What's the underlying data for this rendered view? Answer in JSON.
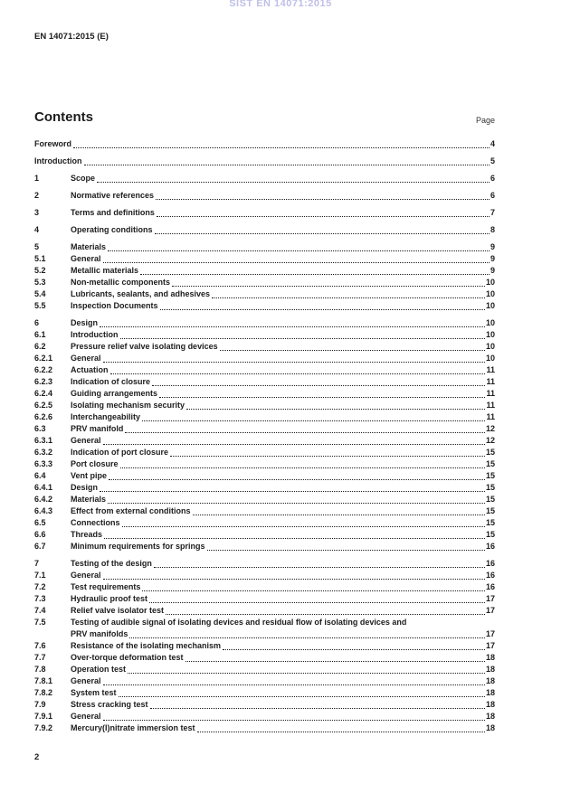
{
  "header": {
    "watermark": "SIST EN 14071:2015",
    "doc_ref": "EN 14071:2015 (E)"
  },
  "contents": {
    "title": "Contents",
    "page_label": "Page"
  },
  "toc": [
    {
      "num": "",
      "title": "Foreword",
      "page": "4",
      "level": "top",
      "unnumbered": true
    },
    {
      "num": "",
      "title": "Introduction",
      "page": "5",
      "level": "top",
      "unnumbered": true
    },
    {
      "num": "1",
      "title": "Scope",
      "page": "6",
      "level": "top"
    },
    {
      "num": "2",
      "title": "Normative references",
      "page": "6",
      "level": "top"
    },
    {
      "num": "3",
      "title": "Terms and definitions",
      "page": "7",
      "level": "top"
    },
    {
      "num": "4",
      "title": "Operating conditions",
      "page": "8",
      "level": "top"
    },
    {
      "num": "5",
      "title": "Materials",
      "page": "9",
      "level": "top"
    },
    {
      "num": "5.1",
      "title": "General",
      "page": "9",
      "level": "sub"
    },
    {
      "num": "5.2",
      "title": "Metallic materials",
      "page": "9",
      "level": "sub"
    },
    {
      "num": "5.3",
      "title": "Non-metallic components",
      "page": "10",
      "level": "sub"
    },
    {
      "num": "5.4",
      "title": "Lubricants, sealants, and adhesives",
      "page": "10",
      "level": "sub"
    },
    {
      "num": "5.5",
      "title": "Inspection Documents",
      "page": "10",
      "level": "sub"
    },
    {
      "num": "6",
      "title": "Design",
      "page": "10",
      "level": "top"
    },
    {
      "num": "6.1",
      "title": "Introduction",
      "page": "10",
      "level": "sub"
    },
    {
      "num": "6.2",
      "title": "Pressure relief valve isolating devices",
      "page": "10",
      "level": "sub"
    },
    {
      "num": "6.2.1",
      "title": "General",
      "page": "10",
      "level": "sub"
    },
    {
      "num": "6.2.2",
      "title": "Actuation",
      "page": "11",
      "level": "sub"
    },
    {
      "num": "6.2.3",
      "title": "Indication of closure",
      "page": "11",
      "level": "sub"
    },
    {
      "num": "6.2.4",
      "title": "Guiding arrangements",
      "page": "11",
      "level": "sub"
    },
    {
      "num": "6.2.5",
      "title": "Isolating mechanism security",
      "page": "11",
      "level": "sub"
    },
    {
      "num": "6.2.6",
      "title": "Interchangeability",
      "page": "11",
      "level": "sub"
    },
    {
      "num": "6.3",
      "title": "PRV manifold",
      "page": "12",
      "level": "sub"
    },
    {
      "num": "6.3.1",
      "title": "General",
      "page": "12",
      "level": "sub"
    },
    {
      "num": "6.3.2",
      "title": "Indication of port closure",
      "page": "15",
      "level": "sub"
    },
    {
      "num": "6.3.3",
      "title": "Port closure",
      "page": "15",
      "level": "sub"
    },
    {
      "num": "6.4",
      "title": "Vent pipe",
      "page": "15",
      "level": "sub"
    },
    {
      "num": "6.4.1",
      "title": "Design",
      "page": "15",
      "level": "sub"
    },
    {
      "num": "6.4.2",
      "title": "Materials",
      "page": "15",
      "level": "sub"
    },
    {
      "num": "6.4.3",
      "title": "Effect from external conditions",
      "page": "15",
      "level": "sub"
    },
    {
      "num": "6.5",
      "title": "Connections",
      "page": "15",
      "level": "sub"
    },
    {
      "num": "6.6",
      "title": "Threads",
      "page": "15",
      "level": "sub"
    },
    {
      "num": "6.7",
      "title": "Minimum requirements for springs",
      "page": "16",
      "level": "sub"
    },
    {
      "num": "7",
      "title": "Testing of the design",
      "page": "16",
      "level": "top"
    },
    {
      "num": "7.1",
      "title": "General",
      "page": "16",
      "level": "sub"
    },
    {
      "num": "7.2",
      "title": "Test requirements",
      "page": "16",
      "level": "sub"
    },
    {
      "num": "7.3",
      "title": "Hydraulic proof test",
      "page": "17",
      "level": "sub"
    },
    {
      "num": "7.4",
      "title": "Relief valve isolator test",
      "page": "17",
      "level": "sub"
    },
    {
      "num": "7.5",
      "title": "Testing of audible signal of isolating devices and residual flow of isolating devices and",
      "cont": "PRV manifolds",
      "page": "17",
      "level": "sub"
    },
    {
      "num": "7.6",
      "title": "Resistance of the isolating mechanism",
      "page": "17",
      "level": "sub"
    },
    {
      "num": "7.7",
      "title": "Over-torque deformation test",
      "page": "18",
      "level": "sub"
    },
    {
      "num": "7.8",
      "title": "Operation test",
      "page": "18",
      "level": "sub"
    },
    {
      "num": "7.8.1",
      "title": "General",
      "page": "18",
      "level": "sub"
    },
    {
      "num": "7.8.2",
      "title": "System test",
      "page": "18",
      "level": "sub"
    },
    {
      "num": "7.9",
      "title": "Stress cracking test",
      "page": "18",
      "level": "sub"
    },
    {
      "num": "7.9.1",
      "title": "General",
      "page": "18",
      "level": "sub"
    },
    {
      "num": "7.9.2",
      "title": "Mercury(I)nitrate immersion test",
      "page": "18",
      "level": "sub"
    }
  ],
  "footer": {
    "page_number": "2"
  },
  "colors": {
    "watermark": "#bfbfe8",
    "text": "#1c1c1c"
  }
}
